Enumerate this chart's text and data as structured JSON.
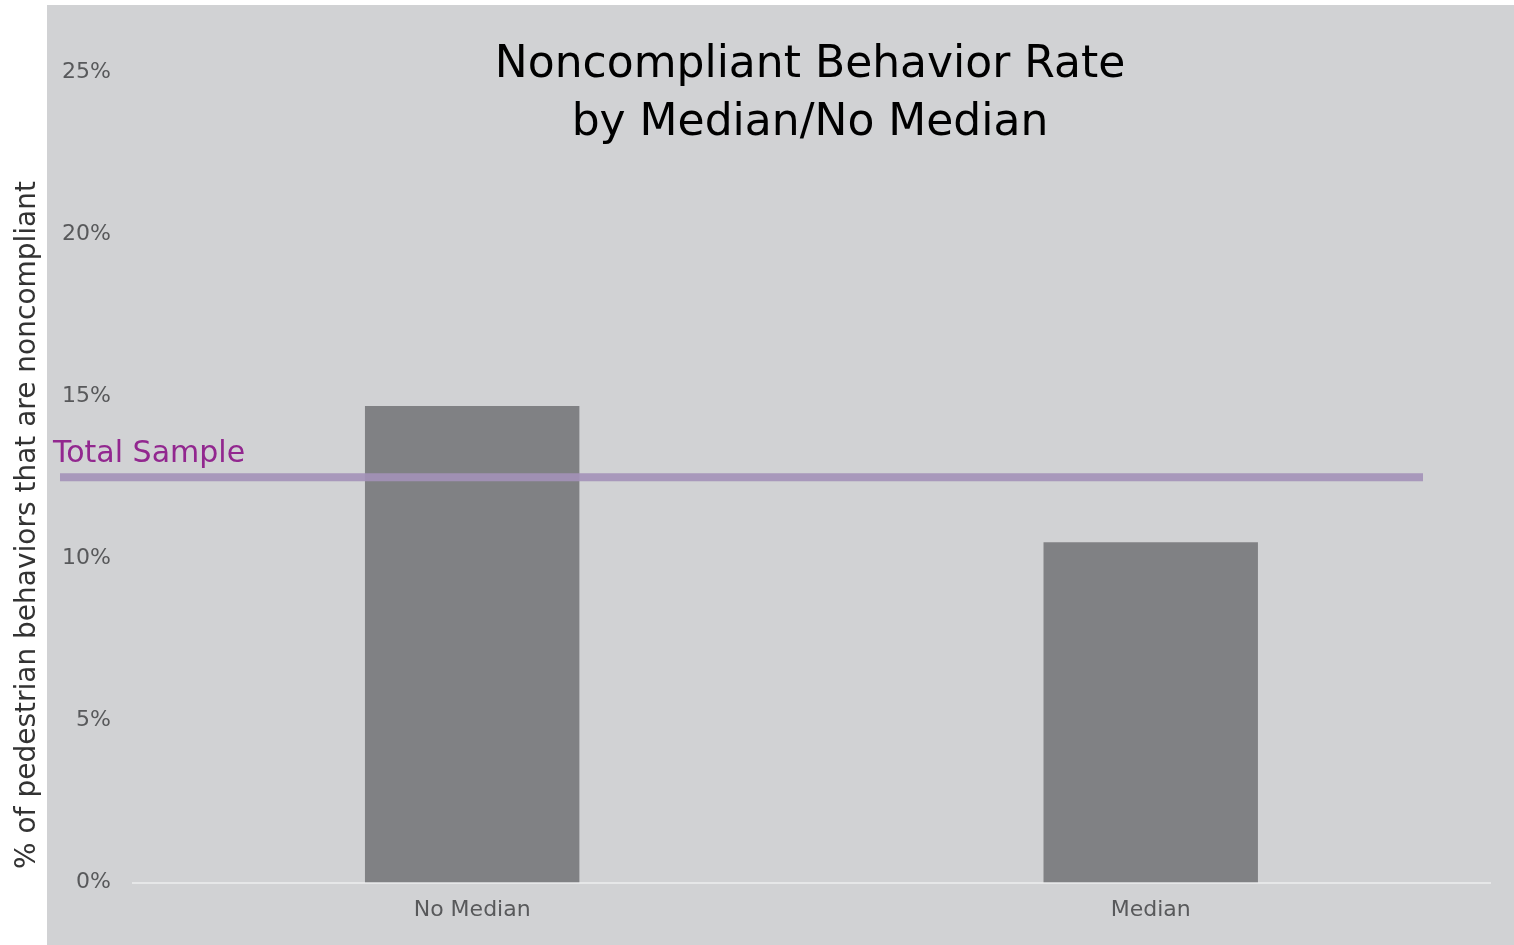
{
  "chart_data": {
    "type": "bar",
    "title": "Noncompliant Behavior Rate\nby Median/No Median",
    "ylabel": "% of pedestrian behaviors that are noncompliant",
    "categories": [
      "No Median",
      "Median"
    ],
    "values": [
      14.7,
      10.5
    ],
    "color": "#808184",
    "ylim": [
      0,
      25
    ],
    "yticks": [
      {
        "value": 0,
        "label": "0%"
      },
      {
        "value": 5,
        "label": "5%"
      },
      {
        "value": 10,
        "label": "10%"
      },
      {
        "value": 15,
        "label": "15%"
      },
      {
        "value": 20,
        "label": "20%"
      },
      {
        "value": 25,
        "label": "25%"
      }
    ],
    "grid": false,
    "legend": false,
    "ref_lines": [
      {
        "axis": "y",
        "value": 12.5,
        "label": "Total Sample",
        "color": "#a391b8"
      }
    ]
  }
}
